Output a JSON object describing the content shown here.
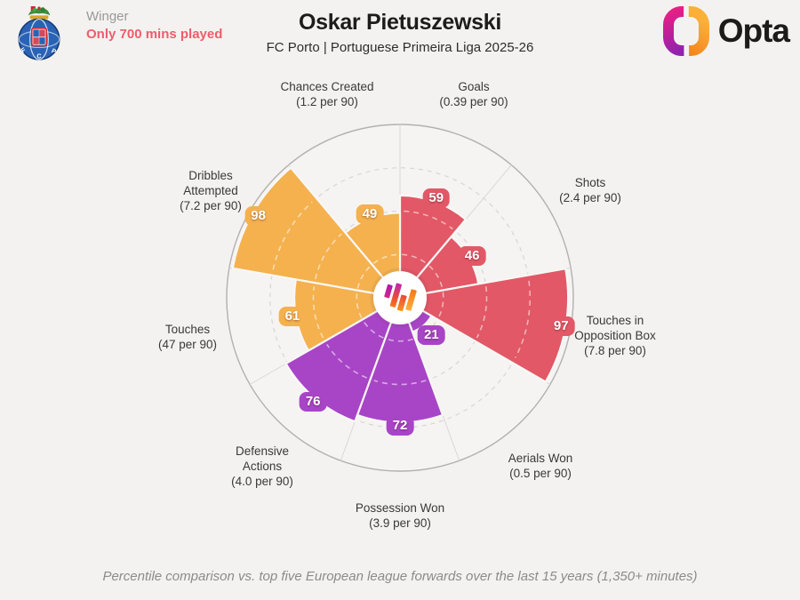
{
  "header": {
    "position": "Winger",
    "minutes_note": "Only 700 mins played",
    "title": "Oskar Pietuszewski",
    "subtitle": "FC Porto | Portuguese Primeira Liga 2025-26"
  },
  "brand": {
    "wordmark": "Opta",
    "crest_icon": "fc-porto-crest",
    "logo_icon": "opta-ring-icon",
    "center_icon": "opta-pulse-icon"
  },
  "footer": {
    "note": "Percentile comparison vs. top five European league forwards over the last 15 years (1,350+ minutes)"
  },
  "colors": {
    "page_bg": "#f3f2f0",
    "circle_bg": "#f5f4f2",
    "outer_ring": "#b3b1ae",
    "spoke": "#dbd9d6",
    "grid_dash_bg": "#d8d6d3",
    "grid_dash_on_slice": "rgba(255,255,255,0.55)",
    "attacking": "#e25866",
    "defending": "#a845c6",
    "possession": "#f4b14e",
    "warning_text": "#ee5d6c"
  },
  "chart_data": {
    "type": "bar",
    "variant": "polar-pizza-percentile",
    "scale": [
      0,
      100
    ],
    "gridlines_pct": [
      25,
      50,
      75
    ],
    "title": "Oskar Pietuszewski percentile pizza",
    "metrics": [
      {
        "label": "Goals",
        "per90": "(0.39 per 90)",
        "value": 59,
        "color": "#e25866",
        "group": "attacking"
      },
      {
        "label": "Shots",
        "per90": "(2.4 per 90)",
        "value": 46,
        "color": "#e25866",
        "group": "attacking"
      },
      {
        "label": "Touches in Opposition Box",
        "per90": "(7.8 per 90)",
        "value": 97,
        "color": "#e25866",
        "group": "attacking"
      },
      {
        "label": "Aerials Won",
        "per90": "(0.5 per 90)",
        "value": 21,
        "color": "#a845c6",
        "group": "defending"
      },
      {
        "label": "Possession Won",
        "per90": "(3.9 per 90)",
        "value": 72,
        "color": "#a845c6",
        "group": "defending"
      },
      {
        "label": "Defensive Actions",
        "per90": "(4.0 per 90)",
        "value": 76,
        "color": "#a845c6",
        "group": "defending"
      },
      {
        "label": "Touches",
        "per90": "(47 per 90)",
        "value": 61,
        "color": "#f4b14e",
        "group": "possession"
      },
      {
        "label": "Dribbles Attempted",
        "per90": "(7.2 per 90)",
        "value": 98,
        "color": "#f4b14e",
        "group": "possession"
      },
      {
        "label": "Chances Created",
        "per90": "(1.2 per 90)",
        "value": 49,
        "color": "#f4b14e",
        "group": "possession"
      }
    ]
  }
}
